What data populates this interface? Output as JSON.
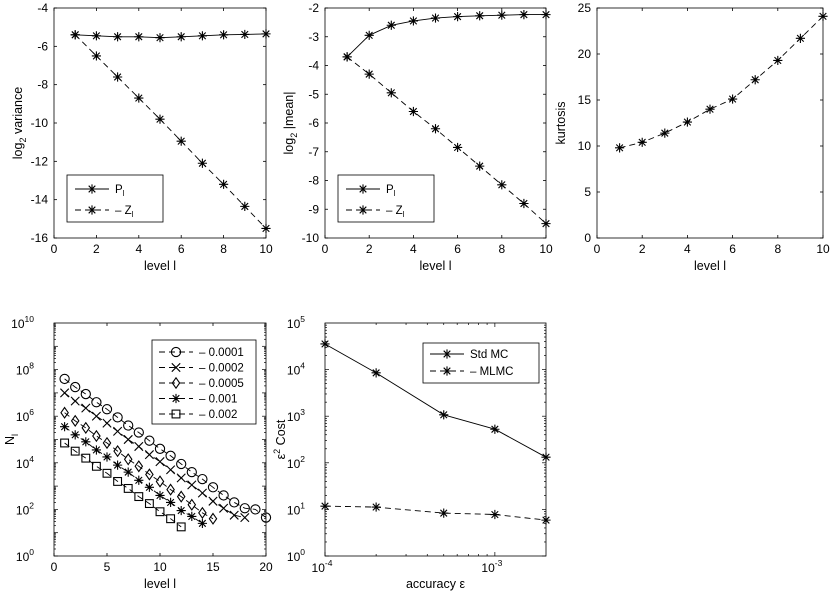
{
  "chart_data": [
    {
      "type": "line",
      "id": "p1",
      "xlabel": "level l",
      "ylabel_main": "log",
      "ylabel_sub": "2",
      "ylabel_rest": " variance",
      "xlim": [
        0,
        10
      ],
      "ylim": [
        -16,
        -4
      ],
      "xticks": [
        "0",
        "2",
        "4",
        "6",
        "8",
        "10"
      ],
      "yticks": [
        "-16",
        "-14",
        "-12",
        "-10",
        "-8",
        "-6",
        "-4"
      ],
      "legend_position": "bottom-left",
      "series": [
        {
          "name": "P",
          "sub": "l",
          "style": "solid",
          "marker": "asterisk",
          "x": [
            1,
            2,
            3,
            4,
            5,
            6,
            7,
            8,
            9,
            10
          ],
          "y": [
            -5.4,
            -5.45,
            -5.5,
            -5.5,
            -5.55,
            -5.5,
            -5.45,
            -5.4,
            -5.38,
            -5.35
          ]
        },
        {
          "name": "Z",
          "sub": "l",
          "style": "dashed",
          "marker": "asterisk",
          "x": [
            1,
            2,
            3,
            4,
            5,
            6,
            7,
            8,
            9,
            10
          ],
          "y": [
            -5.4,
            -6.5,
            -7.6,
            -8.7,
            -9.8,
            -10.95,
            -12.1,
            -13.2,
            -14.35,
            -15.5
          ]
        }
      ]
    },
    {
      "type": "line",
      "id": "p2",
      "xlabel": "level l",
      "ylabel_main": "log",
      "ylabel_sub": "2",
      "ylabel_rest": " |mean|",
      "xlim": [
        0,
        10
      ],
      "ylim": [
        -10,
        -2
      ],
      "xticks": [
        "0",
        "2",
        "4",
        "6",
        "8",
        "10"
      ],
      "yticks": [
        "-10",
        "-9",
        "-8",
        "-7",
        "-6",
        "-5",
        "-4",
        "-3",
        "-2"
      ],
      "legend_position": "bottom-left",
      "series": [
        {
          "name": "P",
          "sub": "l",
          "style": "solid",
          "marker": "asterisk",
          "x": [
            1,
            2,
            3,
            4,
            5,
            6,
            7,
            8,
            9,
            10
          ],
          "y": [
            -3.7,
            -2.95,
            -2.6,
            -2.45,
            -2.35,
            -2.3,
            -2.27,
            -2.25,
            -2.23,
            -2.23
          ]
        },
        {
          "name": "Z",
          "sub": "l",
          "style": "dashed",
          "marker": "asterisk",
          "x": [
            1,
            2,
            3,
            4,
            5,
            6,
            7,
            8,
            9,
            10
          ],
          "y": [
            -3.7,
            -4.3,
            -4.95,
            -5.6,
            -6.2,
            -6.85,
            -7.5,
            -8.15,
            -8.8,
            -9.5
          ]
        }
      ]
    },
    {
      "type": "line",
      "id": "p3",
      "xlabel": "level l",
      "ylabel_main": "kurtosis",
      "ylabel_sub": "",
      "ylabel_rest": "",
      "xlim": [
        0,
        10
      ],
      "ylim": [
        0,
        25
      ],
      "xticks": [
        "0",
        "2",
        "4",
        "6",
        "8",
        "10"
      ],
      "yticks": [
        "0",
        "5",
        "10",
        "15",
        "20",
        "25"
      ],
      "series": [
        {
          "name": "kurtosis",
          "style": "dashed",
          "marker": "asterisk",
          "x": [
            1,
            2,
            3,
            4,
            5,
            6,
            7,
            8,
            9,
            10
          ],
          "y": [
            9.8,
            10.4,
            11.4,
            12.6,
            14.0,
            15.1,
            17.2,
            19.3,
            21.7,
            24.1
          ]
        }
      ]
    },
    {
      "type": "line",
      "id": "p4",
      "xlabel": "level l",
      "ylabel_main": "N",
      "ylabel_sub": "l",
      "xlim": [
        0,
        20
      ],
      "ylim_exp": [
        0,
        10
      ],
      "xticks": [
        "0",
        "5",
        "10",
        "15",
        "20"
      ],
      "yticks_base": "10",
      "yticks_exp": [
        "0",
        "2",
        "4",
        "6",
        "8",
        "10"
      ],
      "legend_position": "top-right",
      "series": [
        {
          "name": "0.0001",
          "marker": "circle",
          "style": "dashed",
          "x": [
            1,
            2,
            3,
            4,
            5,
            6,
            7,
            8,
            9,
            10,
            11,
            12,
            13,
            14,
            15,
            16,
            17,
            18,
            19,
            20
          ],
          "log10y": [
            7.6,
            7.25,
            6.95,
            6.6,
            6.3,
            5.95,
            5.6,
            5.3,
            4.95,
            4.6,
            4.3,
            3.95,
            3.6,
            3.3,
            2.95,
            2.6,
            2.3,
            2.05,
            2.0,
            1.65
          ]
        },
        {
          "name": "0.0002",
          "marker": "x",
          "style": "dashed",
          "x": [
            1,
            2,
            3,
            4,
            5,
            6,
            7,
            8,
            9,
            10,
            11,
            12,
            13,
            14,
            15,
            16,
            17,
            18
          ],
          "log10y": [
            7.0,
            6.65,
            6.35,
            6.0,
            5.7,
            5.35,
            5.0,
            4.7,
            4.35,
            4.05,
            3.7,
            3.35,
            3.05,
            2.7,
            2.35,
            2.05,
            1.75,
            1.65
          ]
        },
        {
          "name": "0.0005",
          "marker": "diamond",
          "style": "dashed",
          "x": [
            1,
            2,
            3,
            4,
            5,
            6,
            7,
            8,
            9,
            10,
            11,
            12,
            13,
            14,
            15
          ],
          "log10y": [
            6.15,
            5.8,
            5.5,
            5.15,
            4.85,
            4.5,
            4.15,
            3.85,
            3.5,
            3.2,
            2.85,
            2.55,
            2.2,
            1.85,
            1.6
          ]
        },
        {
          "name": "0.001",
          "marker": "asterisk",
          "style": "dashed",
          "x": [
            1,
            2,
            3,
            4,
            5,
            6,
            7,
            8,
            9,
            10,
            11,
            12,
            13,
            14
          ],
          "log10y": [
            5.55,
            5.2,
            4.9,
            4.55,
            4.25,
            3.9,
            3.6,
            3.25,
            2.95,
            2.6,
            2.3,
            1.95,
            1.7,
            1.4
          ]
        },
        {
          "name": "0.002",
          "marker": "square",
          "style": "dashed",
          "x": [
            1,
            2,
            3,
            4,
            5,
            6,
            7,
            8,
            9,
            10,
            11,
            12
          ],
          "log10y": [
            4.85,
            4.5,
            4.2,
            3.85,
            3.55,
            3.2,
            2.9,
            2.55,
            2.25,
            1.9,
            1.6,
            1.25
          ]
        }
      ]
    },
    {
      "type": "line",
      "id": "p5",
      "xlabel": "accuracy ε",
      "ylabel_main": "ε",
      "ylabel_sup": "2",
      "ylabel_rest": " Cost",
      "xlim_exp": [
        -4,
        -2.699
      ],
      "ylim_exp": [
        0,
        5
      ],
      "xticks_base": "10",
      "xticks_exp": [
        "-4",
        "-3"
      ],
      "yticks_base": "10",
      "yticks_exp": [
        "0",
        "1",
        "2",
        "3",
        "4",
        "5"
      ],
      "legend_position": "top-right",
      "series": [
        {
          "name": "Std MC",
          "style": "solid",
          "marker": "asterisk",
          "x": [
            0.0001,
            0.0002,
            0.0005,
            0.001,
            0.002
          ],
          "log10y": [
            4.55,
            3.93,
            3.03,
            2.72,
            2.12
          ]
        },
        {
          "name": "MLMC",
          "style": "dashed",
          "marker": "asterisk",
          "x": [
            0.0001,
            0.0002,
            0.0005,
            0.001,
            0.002
          ],
          "log10y": [
            1.07,
            1.05,
            0.92,
            0.89,
            0.77
          ]
        }
      ]
    }
  ]
}
